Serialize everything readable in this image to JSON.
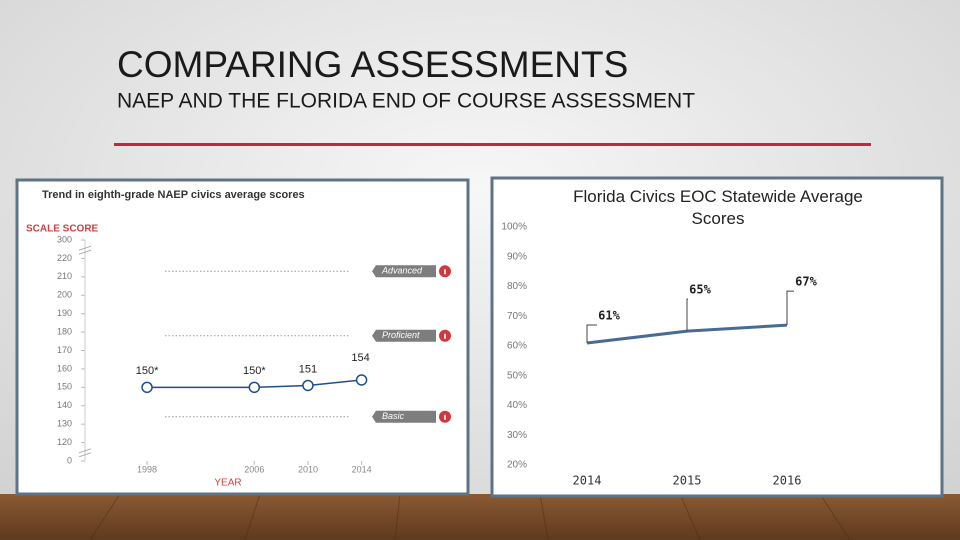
{
  "title": "COMPARING ASSESSMENTS",
  "subtitle": "NAEP AND THE FLORIDA END OF COURSE ASSESSMENT",
  "chart_data": [
    {
      "type": "line",
      "title": "Trend in eighth-grade NAEP civics average scores",
      "y_label": "SCALE SCORE",
      "x_label": "YEAR",
      "x": [
        1998,
        2006,
        2010,
        2014
      ],
      "xlim": [
        1993,
        2015
      ],
      "xticks": [
        1998,
        2006,
        2010,
        2014
      ],
      "series": [
        {
          "color": "#1f4e8c",
          "values": [
            150,
            150,
            151,
            154
          ],
          "value_labels": [
            "150*",
            "150*",
            "151",
            "154"
          ]
        }
      ],
      "ylim": [
        0,
        300
      ],
      "yticks": [
        0,
        120,
        130,
        140,
        150,
        160,
        170,
        180,
        190,
        200,
        210,
        220,
        300
      ],
      "annotations": [
        {
          "label": "Advanced",
          "value": 213
        },
        {
          "label": "Proficient",
          "value": 178
        },
        {
          "label": "Basic",
          "value": 134
        }
      ]
    },
    {
      "type": "line",
      "title": "Florida Civics EOC Statewide Average Scores",
      "categories": [
        "2014",
        "2015",
        "2016"
      ],
      "series": [
        {
          "color": "#4a6a94",
          "values": [
            61,
            65,
            67
          ],
          "value_labels": [
            "61%",
            "65%",
            "67%"
          ]
        }
      ],
      "ylim": [
        20,
        100
      ],
      "yticks": [
        {
          "value": 20,
          "label": "20%"
        },
        {
          "value": 30,
          "label": "30%"
        },
        {
          "value": 40,
          "label": "40%"
        },
        {
          "value": 50,
          "label": "50%"
        },
        {
          "value": 60,
          "label": "60%"
        },
        {
          "value": 70,
          "label": "70%"
        },
        {
          "value": 80,
          "label": "80%"
        },
        {
          "value": 90,
          "label": "90%"
        },
        {
          "value": 100,
          "label": "100%"
        }
      ]
    }
  ]
}
